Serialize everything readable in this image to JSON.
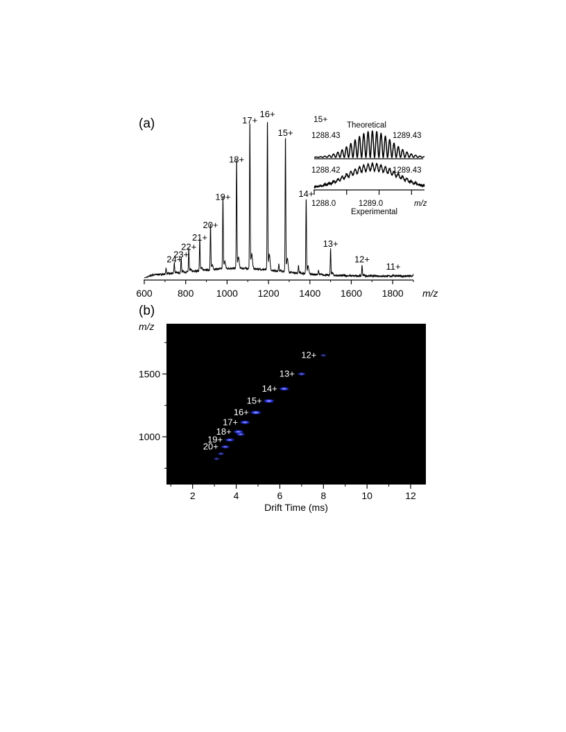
{
  "panel_a": {
    "label": "(a)"
  },
  "panel_b": {
    "label": "(b)"
  },
  "chart_data": [
    {
      "type": "line",
      "panel": "(a)",
      "xlabel": "m/z",
      "ylabel": "",
      "xlim": [
        600,
        1900
      ],
      "x_ticks": [
        600,
        800,
        1000,
        1200,
        1400,
        1600,
        1800
      ],
      "peaks": [
        {
          "mz": 705,
          "rel": 0.04
        },
        {
          "mz": 745,
          "rel": 0.07,
          "label": "24+"
        },
        {
          "mz": 778,
          "rel": 0.1,
          "label": "23+"
        },
        {
          "mz": 815,
          "rel": 0.15,
          "label": "22+"
        },
        {
          "mz": 868,
          "rel": 0.21,
          "label": "21+"
        },
        {
          "mz": 920,
          "rel": 0.29,
          "label": "20+"
        },
        {
          "mz": 980,
          "rel": 0.47,
          "label": "19+"
        },
        {
          "mz": 1046,
          "rel": 0.71,
          "label": "18+"
        },
        {
          "mz": 1110,
          "rel": 0.96,
          "label": "17+"
        },
        {
          "mz": 1195,
          "rel": 1.0,
          "label": "16+"
        },
        {
          "mz": 1250,
          "rel": 0.05
        },
        {
          "mz": 1282,
          "rel": 0.88,
          "label": "15+"
        },
        {
          "mz": 1345,
          "rel": 0.05
        },
        {
          "mz": 1382,
          "rel": 0.49,
          "label": "14+"
        },
        {
          "mz": 1442,
          "rel": 0.03
        },
        {
          "mz": 1500,
          "rel": 0.17,
          "label": "13+"
        },
        {
          "mz": 1652,
          "rel": 0.07,
          "label": "12+"
        },
        {
          "mz": 1803,
          "rel": 0.01,
          "label": "11+"
        },
        {
          "mz": 1900,
          "rel": 0.01
        }
      ],
      "inset": {
        "charge_label": "15+",
        "theoretical_label": "Theoretical",
        "experimental_label": "Experimental",
        "theoretical_left_mz": "1288.43",
        "theoretical_right_mz": "1289.43",
        "experimental_left_mz": "1288.42",
        "experimental_right_mz": "1289.43",
        "xlabel": "m/z",
        "x_ticks": [
          "1288.0",
          "1289.0"
        ],
        "xlim": [
          1288.0,
          1289.7
        ],
        "isotope_spacing": 0.0667
      }
    },
    {
      "type": "heatmap",
      "panel": "(b)",
      "xlabel": "Drift Time (ms)",
      "ylabel": "m/z",
      "xlim": [
        0.8,
        12.7
      ],
      "ylim": [
        620,
        1900
      ],
      "x_ticks": [
        2,
        4,
        6,
        8,
        10,
        12
      ],
      "y_ticks": [
        1000,
        1500
      ],
      "background": "#000000",
      "spot_color": "#2a3cff",
      "spot_core_color": "#c8b4ff",
      "label_color": "#ffffff",
      "spots": [
        {
          "label": "12+",
          "drift": 8.0,
          "mz": 1648,
          "intensity": 0.3
        },
        {
          "label": "13+",
          "drift": 7.0,
          "mz": 1500,
          "intensity": 0.6
        },
        {
          "label": "14+",
          "drift": 6.2,
          "mz": 1382,
          "intensity": 0.9
        },
        {
          "label": "15+",
          "drift": 5.5,
          "mz": 1285,
          "intensity": 1.0
        },
        {
          "label": "16+",
          "drift": 4.9,
          "mz": 1193,
          "intensity": 1.0
        },
        {
          "label": "17+",
          "drift": 4.4,
          "mz": 1115,
          "intensity": 0.9
        },
        {
          "label": "18+",
          "drift": 4.1,
          "mz": 1040,
          "intensity": 0.9
        },
        {
          "label": "",
          "drift": 4.2,
          "mz": 1020,
          "intensity": 0.7
        },
        {
          "label": "19+",
          "drift": 3.7,
          "mz": 975,
          "intensity": 0.8
        },
        {
          "label": "20+",
          "drift": 3.5,
          "mz": 920,
          "intensity": 0.7
        },
        {
          "label": "",
          "drift": 3.3,
          "mz": 865,
          "intensity": 0.4
        },
        {
          "label": "",
          "drift": 3.1,
          "mz": 825,
          "intensity": 0.3
        }
      ]
    }
  ]
}
